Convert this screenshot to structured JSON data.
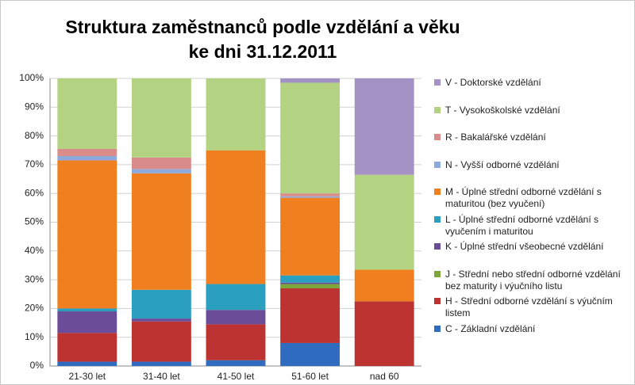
{
  "chart_data": {
    "type": "bar",
    "stacked": true,
    "title": "Struktura zaměstnanců podle vzdělání a věku ke dni 31.12.2011",
    "categories": [
      "21-30 let",
      "31-40 let",
      "41-50 let",
      "51-60 let",
      "nad 60"
    ],
    "series": [
      {
        "name": "C - Základní vzdělání",
        "color": "#2f6cc0",
        "values": [
          1.5,
          1.5,
          2,
          8,
          0
        ]
      },
      {
        "name": "H - Střední odborné vzdělání s výučním listem",
        "color": "#bc3331",
        "values": [
          10,
          14,
          12.5,
          19,
          22.5
        ]
      },
      {
        "name": "J - Střední nebo střední odborné vzdělání bez maturity i výučního listu",
        "color": "#7da53a",
        "values": [
          0,
          0,
          0,
          1.5,
          0
        ]
      },
      {
        "name": "K - Úplné střední všeobecné vzdělání",
        "color": "#6a4c98",
        "values": [
          7.5,
          1,
          5,
          0.5,
          0
        ]
      },
      {
        "name": "L - Úplné střední odborné vzdělání s vyučením i maturitou",
        "color": "#2b9fbf",
        "values": [
          1,
          10,
          9,
          2.5,
          0
        ]
      },
      {
        "name": "M - Úplné střední odborné vzdělání s maturitou (bez vyučení)",
        "color": "#f0801f",
        "values": [
          51.5,
          40.5,
          46.5,
          27,
          11
        ]
      },
      {
        "name": "N - Vyšší odborné vzdělání",
        "color": "#8ea9dc",
        "values": [
          1.5,
          1.5,
          0,
          0.5,
          0
        ]
      },
      {
        "name": "R - Bakalářské vzdělání",
        "color": "#d98c8a",
        "values": [
          2.5,
          4,
          0,
          1,
          0
        ]
      },
      {
        "name": "T - Vysokoškolské vzdělání",
        "color": "#b3d282",
        "values": [
          24.5,
          27.5,
          25,
          38.5,
          33
        ]
      },
      {
        "name": "V - Doktorské vzdělání",
        "color": "#a592c4",
        "values": [
          0,
          0,
          0,
          1.5,
          33.5
        ]
      }
    ],
    "ylim": [
      0,
      100
    ],
    "yticks": [
      {
        "value": 0,
        "label": "0%"
      },
      {
        "value": 10,
        "label": "10%"
      },
      {
        "value": 20,
        "label": "20%"
      },
      {
        "value": 30,
        "label": "30%"
      },
      {
        "value": 40,
        "label": "40%"
      },
      {
        "value": 50,
        "label": "50%"
      },
      {
        "value": 60,
        "label": "60%"
      },
      {
        "value": 70,
        "label": "70%"
      },
      {
        "value": 80,
        "label": "80%"
      },
      {
        "value": 90,
        "label": "90%"
      },
      {
        "value": 100,
        "label": "100%"
      }
    ],
    "grid": true,
    "legend": "right"
  }
}
